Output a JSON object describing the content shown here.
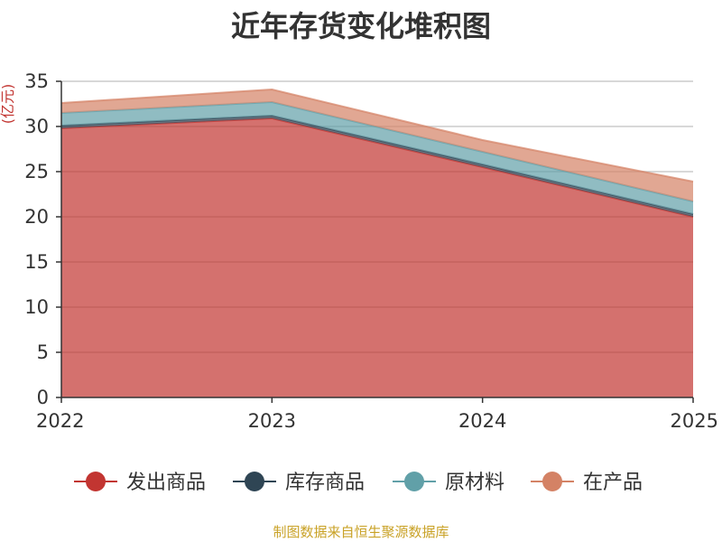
{
  "chart_data": {
    "type": "area",
    "title": "近年存货变化堆积图",
    "ylabel": "(亿元)",
    "xlabel": "",
    "x": [
      "2022",
      "2023",
      "2024",
      "2025"
    ],
    "ylim": [
      0,
      35
    ],
    "yticks": [
      "0",
      "5",
      "10",
      "15",
      "20",
      "25",
      "30",
      "35"
    ],
    "stacked": true,
    "grid": true,
    "legend_position": "bottom",
    "series": [
      {
        "name": "发出商品",
        "values": [
          29.8,
          30.9,
          25.5,
          20.0
        ],
        "color": "#c23531"
      },
      {
        "name": "库存商品",
        "values": [
          0.3,
          0.3,
          0.3,
          0.3
        ],
        "color": "#2f4554"
      },
      {
        "name": "原材料",
        "values": [
          1.4,
          1.5,
          1.4,
          1.4
        ],
        "color": "#61a0a8"
      },
      {
        "name": "在产品",
        "values": [
          1.1,
          1.4,
          1.3,
          2.2
        ],
        "color": "#d48265"
      }
    ]
  },
  "footer": {
    "source": "制图数据来自恒生聚源数据库"
  }
}
